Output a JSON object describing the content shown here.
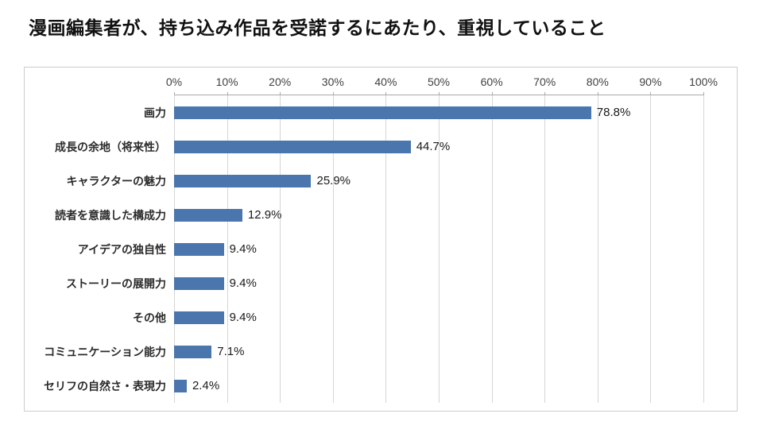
{
  "chart_data": {
    "type": "bar",
    "orientation": "horizontal",
    "title": "漫画編集者が、持ち込み作品を受諾するにあたり、重視していること",
    "categories": [
      "画力",
      "成長の余地（将来性）",
      "キャラクターの魅力",
      "読者を意識した構成力",
      "アイデアの独自性",
      "ストーリーの展開力",
      "その他",
      "コミュニケーション能力",
      "セリフの自然さ・表現力"
    ],
    "values": [
      78.8,
      44.7,
      25.9,
      12.9,
      9.4,
      9.4,
      9.4,
      7.1,
      2.4
    ],
    "value_labels": [
      "78.8%",
      "44.7%",
      "25.9%",
      "12.9%",
      "9.4%",
      "9.4%",
      "9.4%",
      "7.1%",
      "2.4%"
    ],
    "x_ticks": [
      "0%",
      "10%",
      "20%",
      "30%",
      "40%",
      "50%",
      "60%",
      "70%",
      "80%",
      "90%",
      "100%"
    ],
    "xlim": [
      0,
      100
    ],
    "grid": true,
    "legend": "none",
    "bar_color": "#4a76ad",
    "gridline_color": "#d6d6d6"
  }
}
